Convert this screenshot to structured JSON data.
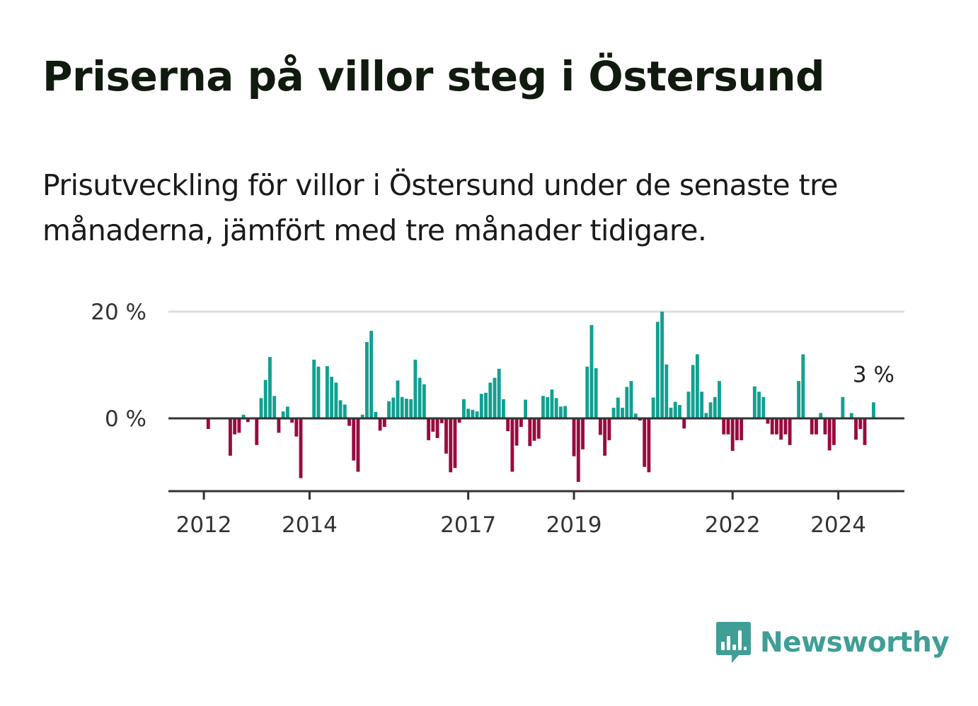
{
  "title": "Priserna på villor steg i Östersund",
  "subtitle": "Prisutveckling för villor i Östersund under de senaste tre månaderna, jämfört med tre månader tidigare.",
  "brand": {
    "name": "Newsworthy",
    "icon": "newsworthy-bar-chart-icon",
    "color": "#3f9e95"
  },
  "colors": {
    "positive": "#11a091",
    "negative": "#9a0a3f",
    "grid": "#dcdcdc",
    "axis": "#333333"
  },
  "chart_data": {
    "type": "bar",
    "title": "",
    "xlabel": "",
    "ylabel": "",
    "ylim": [
      -14,
      20
    ],
    "grid": true,
    "y_ticks": [
      {
        "value": 0,
        "label": "0 %"
      },
      {
        "value": 20,
        "label": "20 %"
      }
    ],
    "x_ticks": [
      {
        "value": 2012,
        "label": "2012"
      },
      {
        "value": 2014,
        "label": "2014"
      },
      {
        "value": 2017,
        "label": "2017"
      },
      {
        "value": 2019,
        "label": "2019"
      },
      {
        "value": 2022,
        "label": "2022"
      },
      {
        "value": 2024,
        "label": "2024"
      }
    ],
    "x_range": [
      2011.33,
      2025.25
    ],
    "start": {
      "year": 2012,
      "month": 1
    },
    "annotation": {
      "text": "3 %",
      "value": 3
    },
    "values": [
      0,
      -2,
      0,
      0,
      0,
      0,
      -7,
      -3,
      -2.7,
      0.7,
      -0.7,
      0,
      -5,
      3.8,
      7.2,
      11.5,
      4.2,
      -2.7,
      1.3,
      2.2,
      -0.8,
      -3.4,
      -11.2,
      0,
      0,
      11,
      9.7,
      0,
      9.8,
      7.8,
      6.7,
      3.4,
      2.6,
      -1.4,
      -7.9,
      -10,
      0.7,
      14.3,
      16.4,
      1.2,
      -2.3,
      -1.6,
      3.2,
      3.9,
      7.1,
      4,
      3.7,
      3.6,
      11,
      7.6,
      6.4,
      -4.1,
      -2.5,
      -3.7,
      -0.9,
      -6.6,
      -10.1,
      -9.3,
      -0.8,
      3.6,
      1.8,
      1.6,
      1.3,
      4.6,
      4.8,
      6.7,
      7.6,
      9.3,
      3.6,
      -2.4,
      -10,
      -5.1,
      -1.6,
      3.5,
      -5.2,
      -4.2,
      -3.8,
      4.2,
      4.0,
      5.4,
      3.8,
      2.2,
      2.3,
      0,
      -7.1,
      -11.9,
      -5.8,
      9.7,
      17.5,
      9.4,
      -3.1,
      -7,
      -4.1,
      2,
      3.9,
      2,
      5.9,
      7,
      0.9,
      -0.4,
      -9.1,
      -10.1,
      3.9,
      18.1,
      20,
      10.1,
      2,
      3.1,
      2.5,
      -1.9,
      5,
      10,
      12,
      5,
      1,
      3,
      4,
      7,
      -3,
      -3,
      -6.1,
      -4.1,
      -4.1,
      0,
      0,
      6,
      5,
      4,
      -1,
      -3,
      -3,
      -4,
      -3,
      -5,
      0,
      7,
      12,
      0,
      -3,
      -3,
      1,
      -3,
      -6,
      -5,
      0,
      4,
      0,
      1,
      -4,
      -2,
      -5,
      0,
      3
    ]
  }
}
